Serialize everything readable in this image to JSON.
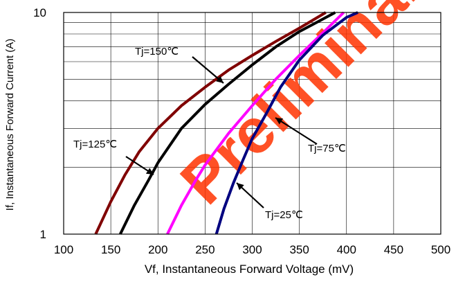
{
  "chart_data": {
    "type": "line",
    "xlabel": "Vf, Instantaneous Forward  Voltage (mV)",
    "ylabel": "If, Instantaneous Forward Current (A)",
    "xlim": [
      100,
      500
    ],
    "ylim": [
      1,
      10
    ],
    "y_scale": "log",
    "grid": true,
    "x_ticks": [
      "100",
      "150",
      "200",
      "250",
      "300",
      "350",
      "400",
      "450",
      "500"
    ],
    "y_ticks": [
      "1",
      "10"
    ],
    "watermark": "Preliminary",
    "series": [
      {
        "name": "Tj=150℃",
        "color": "#800000",
        "points": [
          [
            134,
            1.0
          ],
          [
            150,
            1.4
          ],
          [
            165,
            1.85
          ],
          [
            180,
            2.35
          ],
          [
            200,
            3.0
          ],
          [
            225,
            3.8
          ],
          [
            250,
            4.6
          ],
          [
            275,
            5.5
          ],
          [
            300,
            6.4
          ],
          [
            325,
            7.4
          ],
          [
            350,
            8.5
          ],
          [
            378,
            10.0
          ]
        ]
      },
      {
        "name": "Tj=125℃",
        "color": "#000000",
        "points": [
          [
            160,
            1.0
          ],
          [
            175,
            1.35
          ],
          [
            190,
            1.75
          ],
          [
            200,
            2.1
          ],
          [
            225,
            3.0
          ],
          [
            250,
            3.85
          ],
          [
            275,
            4.75
          ],
          [
            300,
            5.8
          ],
          [
            325,
            7.0
          ],
          [
            350,
            8.2
          ],
          [
            370,
            9.1
          ],
          [
            388,
            10.0
          ]
        ]
      },
      {
        "name": "Tj=75℃",
        "color": "#ff00ff",
        "points": [
          [
            210,
            1.0
          ],
          [
            225,
            1.35
          ],
          [
            240,
            1.75
          ],
          [
            250,
            2.05
          ],
          [
            275,
            2.85
          ],
          [
            300,
            3.8
          ],
          [
            325,
            5.0
          ],
          [
            350,
            6.4
          ],
          [
            375,
            8.1
          ],
          [
            397,
            10.0
          ]
        ]
      },
      {
        "name": "Tj=25℃",
        "color": "#000080",
        "points": [
          [
            262,
            1.0
          ],
          [
            270,
            1.3
          ],
          [
            280,
            1.7
          ],
          [
            290,
            2.15
          ],
          [
            300,
            2.7
          ],
          [
            315,
            3.5
          ],
          [
            330,
            4.6
          ],
          [
            350,
            6.1
          ],
          [
            375,
            7.9
          ],
          [
            400,
            9.5
          ],
          [
            412,
            10.0
          ]
        ]
      }
    ],
    "annotations": [
      {
        "text": "Tj=150℃",
        "series_index": 0
      },
      {
        "text": "Tj=125℃",
        "series_index": 1
      },
      {
        "text": "Tj=75℃",
        "series_index": 2
      },
      {
        "text": "Tj=25℃",
        "series_index": 3
      }
    ]
  }
}
